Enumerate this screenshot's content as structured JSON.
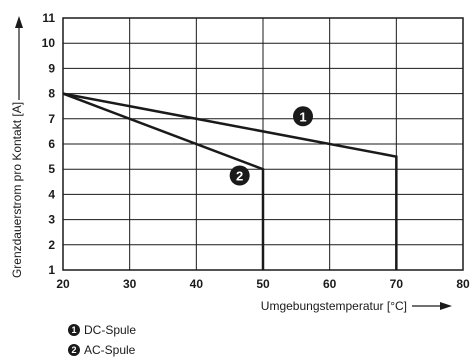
{
  "chart_data": {
    "type": "line",
    "xlabel": "Umgebungstemperatur [°C]",
    "ylabel": "Grenzdauerstrom pro Kontakt [A]",
    "xlim": [
      20,
      80
    ],
    "ylim": [
      1,
      11
    ],
    "xticks": [
      20,
      30,
      40,
      50,
      60,
      70,
      80
    ],
    "yticks": [
      1,
      2,
      3,
      4,
      5,
      6,
      7,
      8,
      9,
      10,
      11
    ],
    "grid": true,
    "series": [
      {
        "marker": "1",
        "x": [
          20,
          70,
          70
        ],
        "y": [
          8,
          5.5,
          1
        ]
      },
      {
        "marker": "2",
        "x": [
          20,
          50,
          50
        ],
        "y": [
          8,
          5,
          1
        ]
      }
    ],
    "annotations": [
      {
        "text": "1",
        "x": 56,
        "y": 7.1
      },
      {
        "text": "2",
        "x": 46.5,
        "y": 4.75
      }
    ],
    "legend": {
      "placement": "bottom-left",
      "items": [
        {
          "marker": "1",
          "label": "DC-Spule"
        },
        {
          "marker": "2",
          "label": "AC-Spule"
        }
      ]
    }
  }
}
